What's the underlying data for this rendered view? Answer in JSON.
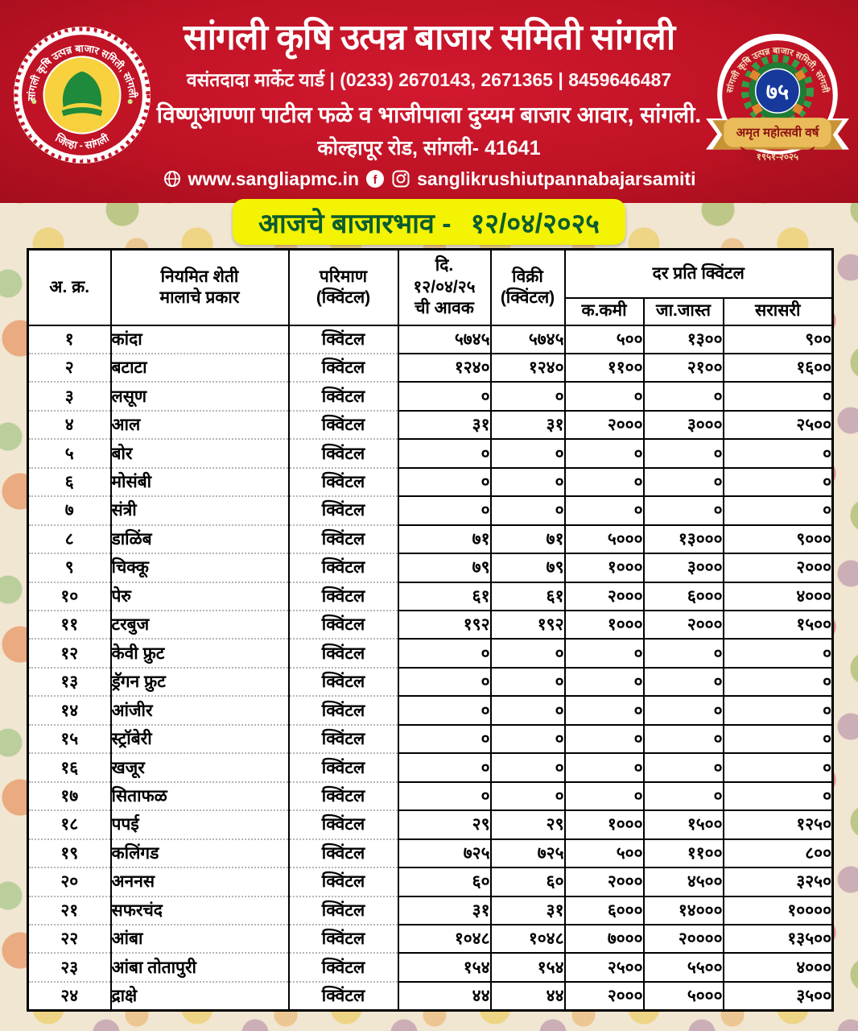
{
  "header": {
    "title": "सांगली कृषि उत्पन्न बाजार समिती सांगली",
    "contact_line": "वसंतदादा मार्केट यार्ड | (0233) 2670143, 2671365 | 8459646487",
    "market_line": "विष्णूआण्णा पाटील फळे व भाजीपाला दुय्यम बाजार आवार, सांगली.",
    "road_line": "कोल्हापूर रोड, सांगली- 41641",
    "website": "www.sangliapmc.in",
    "social_handle": "sanglikrushiutpannabajarsamiti",
    "left_seal": {
      "ring_text": "सांगली कृषि उत्पन्न बाजार समिती, सांगली.",
      "bottom_text": "जिल्हा - सांगली"
    },
    "right_badge": {
      "ring_text": "सांगली कृषि उत्पन्न बाजार समिती, सांगली",
      "number": "७५",
      "ribbon_text": "अमृत महोत्सवी वर्ष",
      "years": "१९५१-२०२५"
    }
  },
  "banner": {
    "label": "आजचे बाजारभाव -",
    "date": "१२/०४/२०२५"
  },
  "table": {
    "headers": {
      "sr": "अ. क्र.",
      "commodity": "नियमित शेती\nमालाचे प्रकार",
      "unit": "परिमाण\n(क्विंटल)",
      "arrival": "दि.\n१२/०४/२५\nची आवक",
      "sale": "विक्री\n(क्विंटल)",
      "rate": "दर प्रति क्विंटल",
      "rate_min": "क.कमी",
      "rate_max": "जा.जास्त",
      "rate_avg": "सरासरी"
    },
    "rows": [
      {
        "sr": "१",
        "name": "कांदा",
        "unit": "क्विंटल",
        "arrival": "५७४५",
        "sale": "५७४५",
        "min": "५००",
        "max": "१३००",
        "avg": "९००"
      },
      {
        "sr": "२",
        "name": "बटाटा",
        "unit": "क्विंटल",
        "arrival": "१२४०",
        "sale": "१२४०",
        "min": "११००",
        "max": "२१००",
        "avg": "१६००"
      },
      {
        "sr": "३",
        "name": "लसूण",
        "unit": "क्विंटल",
        "arrival": "०",
        "sale": "०",
        "min": "०",
        "max": "०",
        "avg": "०"
      },
      {
        "sr": "४",
        "name": "आल",
        "unit": "क्विंटल",
        "arrival": "३१",
        "sale": "३१",
        "min": "२०००",
        "max": "३०००",
        "avg": "२५००"
      },
      {
        "sr": "५",
        "name": "बोर",
        "unit": "क्विंटल",
        "arrival": "०",
        "sale": "०",
        "min": "०",
        "max": "०",
        "avg": "०"
      },
      {
        "sr": "६",
        "name": "मोसंबी",
        "unit": "क्विंटल",
        "arrival": "०",
        "sale": "०",
        "min": "०",
        "max": "०",
        "avg": "०"
      },
      {
        "sr": "७",
        "name": "संत्री",
        "unit": "क्विंटल",
        "arrival": "०",
        "sale": "०",
        "min": "०",
        "max": "०",
        "avg": "०"
      },
      {
        "sr": "८",
        "name": "डाळिंब",
        "unit": "क्विंटल",
        "arrival": "७१",
        "sale": "७१",
        "min": "५०००",
        "max": "१३०००",
        "avg": "९०००"
      },
      {
        "sr": "९",
        "name": "चिक्कू",
        "unit": "क्विंटल",
        "arrival": "७९",
        "sale": "७९",
        "min": "१०००",
        "max": "३०००",
        "avg": "२०००"
      },
      {
        "sr": "१०",
        "name": "पेरु",
        "unit": "क्विंटल",
        "arrival": "६१",
        "sale": "६१",
        "min": "२०००",
        "max": "६०००",
        "avg": "४०००"
      },
      {
        "sr": "११",
        "name": "टरबुज",
        "unit": "क्विंटल",
        "arrival": "१९२",
        "sale": "१९२",
        "min": "१०००",
        "max": "२०००",
        "avg": "१५००"
      },
      {
        "sr": "१२",
        "name": "केवी फ्रुट",
        "unit": "क्विंटल",
        "arrival": "०",
        "sale": "०",
        "min": "०",
        "max": "०",
        "avg": "०"
      },
      {
        "sr": "१३",
        "name": "ड्रॅगन फ्रुट",
        "unit": "क्विंटल",
        "arrival": "०",
        "sale": "०",
        "min": "०",
        "max": "०",
        "avg": "०"
      },
      {
        "sr": "१४",
        "name": "आंजीर",
        "unit": "क्विंटल",
        "arrival": "०",
        "sale": "०",
        "min": "०",
        "max": "०",
        "avg": "०"
      },
      {
        "sr": "१५",
        "name": "स्ट्रॉबेरी",
        "unit": "क्विंटल",
        "arrival": "०",
        "sale": "०",
        "min": "०",
        "max": "०",
        "avg": "०"
      },
      {
        "sr": "१६",
        "name": "खजूर",
        "unit": "क्विंटल",
        "arrival": "०",
        "sale": "०",
        "min": "०",
        "max": "०",
        "avg": "०"
      },
      {
        "sr": "१७",
        "name": "सिताफळ",
        "unit": "क्विंटल",
        "arrival": "०",
        "sale": "०",
        "min": "०",
        "max": "०",
        "avg": "०"
      },
      {
        "sr": "१८",
        "name": "पपई",
        "unit": "क्विंटल",
        "arrival": "२९",
        "sale": "२९",
        "min": "१०००",
        "max": "१५००",
        "avg": "१२५०"
      },
      {
        "sr": "१९",
        "name": "कलिंगड",
        "unit": "क्विंटल",
        "arrival": "७२५",
        "sale": "७२५",
        "min": "५००",
        "max": "११००",
        "avg": "८००"
      },
      {
        "sr": "२०",
        "name": "अननस",
        "unit": "क्विंटल",
        "arrival": "६०",
        "sale": "६०",
        "min": "२०००",
        "max": "४५००",
        "avg": "३२५०"
      },
      {
        "sr": "२१",
        "name": "सफरचंद",
        "unit": "क्विंटल",
        "arrival": "३१",
        "sale": "३१",
        "min": "६०००",
        "max": "१४०००",
        "avg": "१००००"
      },
      {
        "sr": "२२",
        "name": "आंबा",
        "unit": "क्विंटल",
        "arrival": "१०४८",
        "sale": "१०४८",
        "min": "७०००",
        "max": "२००००",
        "avg": "१३५००"
      },
      {
        "sr": "२३",
        "name": "आंबा तोतापुरी",
        "unit": "क्विंटल",
        "arrival": "१५४",
        "sale": "१५४",
        "min": "२५००",
        "max": "५५००",
        "avg": "४०००"
      },
      {
        "sr": "२४",
        "name": "द्राक्षे",
        "unit": "क्विंटल",
        "arrival": "४४",
        "sale": "४४",
        "min": "२०००",
        "max": "५०००",
        "avg": "३५००"
      }
    ]
  },
  "colors": {
    "header_red": "#c01325",
    "banner_yellow": "#f4f303",
    "banner_text_green": "#0a5c31",
    "table_border_black": "#000000",
    "seal_yellow": "#f7d23e",
    "seal_green": "#1f8a3b",
    "badge_blue": "#16399b",
    "ribbon_gold": "#d9a43f"
  }
}
